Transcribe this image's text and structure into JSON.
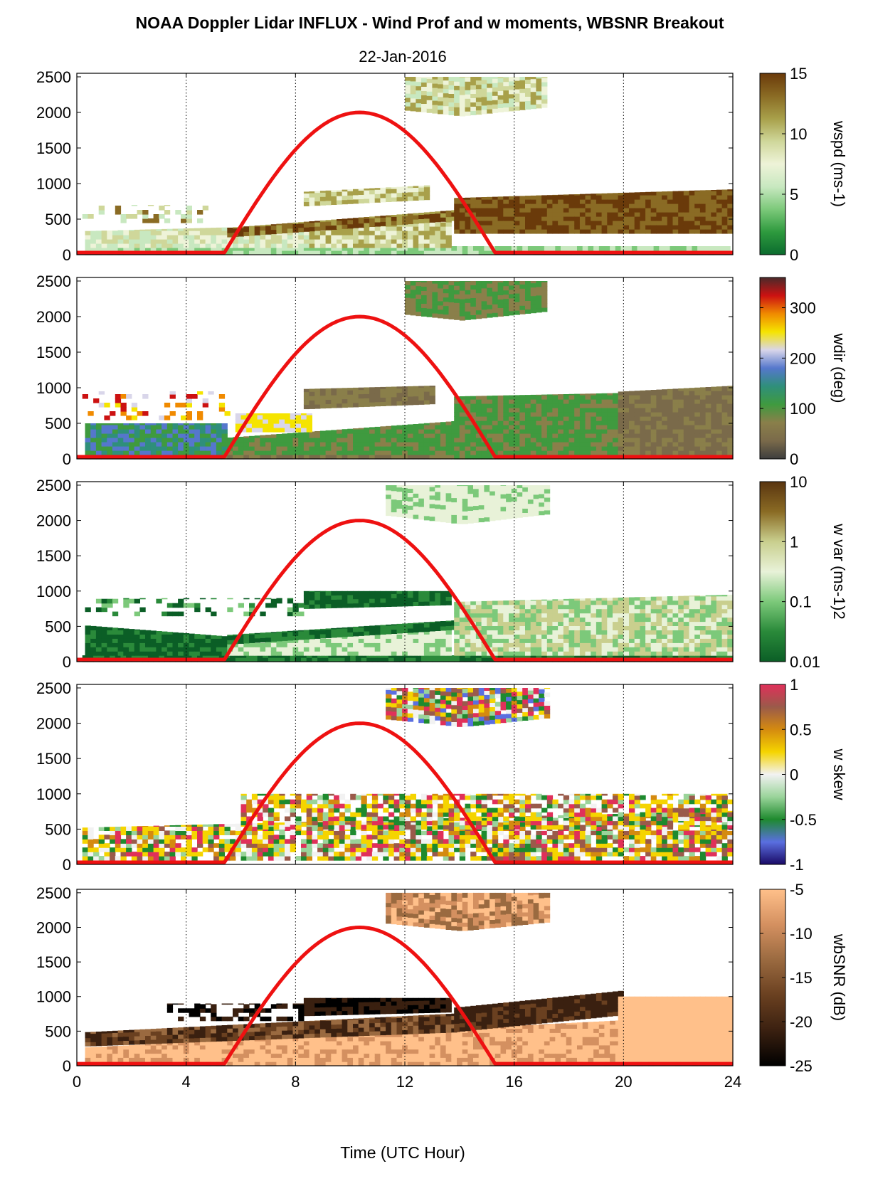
{
  "figure": {
    "title": "NOAA Doppler Lidar INFLUX - Wind Prof and w moments, WBSNR Breakout",
    "date": "22-Jan-2016",
    "xlabel": "Time (UTC Hour)"
  },
  "chart_data": [
    {
      "type": "heatmap",
      "variable": "wspd",
      "colorbar_label": "wspd (ms-1)",
      "colorbar_ticks": [
        "0",
        "5",
        "10",
        "15"
      ],
      "clim": [
        0,
        15
      ],
      "colors": [
        "#0b6b2e",
        "#2e9a3e",
        "#7cc97a",
        "#c8e8c0",
        "#eef3d8",
        "#cfd79a",
        "#a8a04a",
        "#8a6b24",
        "#6a3a0a"
      ],
      "yticks": [
        0,
        500,
        1000,
        1500,
        2000,
        2500
      ],
      "ylim": [
        0,
        2550
      ],
      "xlim": [
        0,
        24
      ],
      "xticks": [
        0,
        4,
        8,
        12,
        16,
        20,
        24
      ],
      "sun_elevation_curve": {
        "start_hour": 5.4,
        "end_hour": 15.3,
        "peak_hour": 10.3,
        "peak_height": 2000
      }
    },
    {
      "type": "heatmap",
      "variable": "wdir",
      "colorbar_label": "wdir (deg)",
      "colorbar_ticks": [
        "0",
        "100",
        "200",
        "300"
      ],
      "clim": [
        0,
        360
      ],
      "colors": [
        "#3e3e3e",
        "#7a6a4a",
        "#8a7f4a",
        "#3f9a3f",
        "#2f8f7a",
        "#5577cc",
        "#d9d6ea",
        "#f5e400",
        "#f08a00",
        "#cc1111",
        "#4a2a2a"
      ],
      "yticks": [
        0,
        500,
        1000,
        1500,
        2000,
        2500
      ],
      "ylim": [
        0,
        2550
      ],
      "xlim": [
        0,
        24
      ],
      "xticks": [
        0,
        4,
        8,
        12,
        16,
        20,
        24
      ],
      "sun_elevation_curve": {
        "start_hour": 5.4,
        "end_hour": 15.3,
        "peak_hour": 10.3,
        "peak_height": 2000
      }
    },
    {
      "type": "heatmap",
      "variable": "w var",
      "colorbar_label": "w var (ms-1)2",
      "colorbar_ticks": [
        "0.01",
        "0.1",
        "1",
        "10"
      ],
      "clim": [
        0.01,
        10
      ],
      "log_scale": true,
      "colors": [
        "#0b5e26",
        "#2a8a3a",
        "#7cc97a",
        "#e8f2d8",
        "#c9cf8e",
        "#8a6b24",
        "#5a3510"
      ],
      "yticks": [
        0,
        500,
        1000,
        1500,
        2000,
        2500
      ],
      "ylim": [
        0,
        2550
      ],
      "xlim": [
        0,
        24
      ],
      "xticks": [
        0,
        4,
        8,
        12,
        16,
        20,
        24
      ],
      "sun_elevation_curve": {
        "start_hour": 5.4,
        "end_hour": 15.3,
        "peak_hour": 10.3,
        "peak_height": 2000
      }
    },
    {
      "type": "heatmap",
      "variable": "w skew",
      "colorbar_label": "w skew",
      "colorbar_ticks": [
        "-1",
        "-0.5",
        "0",
        "0.5",
        "1"
      ],
      "clim": [
        -1,
        1
      ],
      "colors": [
        "#1a0a66",
        "#5a6fe0",
        "#1e8a2e",
        "#9ad49a",
        "#f2f2f2",
        "#f5d400",
        "#d48a10",
        "#9a5a4a",
        "#e0305a"
      ],
      "yticks": [
        0,
        500,
        1000,
        1500,
        2000,
        2500
      ],
      "ylim": [
        0,
        2550
      ],
      "xlim": [
        0,
        24
      ],
      "xticks": [
        0,
        4,
        8,
        12,
        16,
        20,
        24
      ],
      "sun_elevation_curve": {
        "start_hour": 5.4,
        "end_hour": 15.3,
        "peak_hour": 10.3,
        "peak_height": 2000
      }
    },
    {
      "type": "heatmap",
      "variable": "wbSNR",
      "colorbar_label": "wbSNR (dB)",
      "colorbar_ticks": [
        "-25",
        "-20",
        "-15",
        "-10",
        "-5"
      ],
      "clim": [
        -25,
        -5
      ],
      "colors": [
        "#000000",
        "#3a2010",
        "#6a4020",
        "#9a6a40",
        "#d49060",
        "#ffc08a"
      ],
      "yticks": [
        0,
        500,
        1000,
        1500,
        2000,
        2500
      ],
      "ylim": [
        0,
        2550
      ],
      "xlim": [
        0,
        24
      ],
      "xticks": [
        0,
        4,
        8,
        12,
        16,
        20,
        24
      ],
      "sun_elevation_curve": {
        "start_hour": 5.4,
        "end_hour": 15.3,
        "peak_hour": 10.3,
        "peak_height": 2000
      }
    }
  ]
}
